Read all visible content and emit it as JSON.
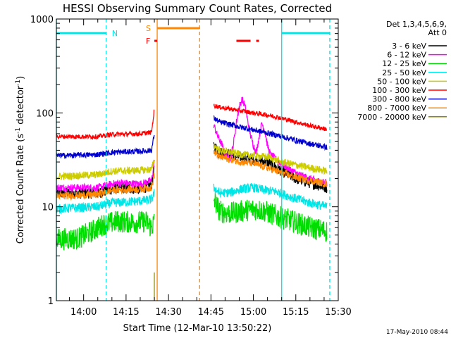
{
  "chart_data": {
    "type": "line",
    "title": "HESSI Observing Summary Count Rates, Corrected",
    "xlabel": "Start Time (12-Mar-10 13:50:22)",
    "ylabel_main": "Corrected Count Rate (s",
    "ylabel_sup1": "-1",
    "ylabel_mid": " detector",
    "ylabel_sup2": "-1",
    "ylabel_end": ")",
    "yscale": "log",
    "ylim": [
      1,
      1000
    ],
    "xlim": [
      "13:50:22",
      "15:30"
    ],
    "x_ticks": [
      "14:00",
      "14:15",
      "14:30",
      "14:45",
      "15:00",
      "15:15",
      "15:30"
    ],
    "y_ticks": [
      "1",
      "10",
      "100",
      "1000"
    ],
    "footer": "17-May-2010 08:44",
    "legend": {
      "header1": "Det 1,3,4,5,6,9,",
      "header2": "Att 0",
      "placement": "right",
      "entries": [
        {
          "label": "3 - 6 keV",
          "color": "#000000"
        },
        {
          "label": "6 - 12 keV",
          "color": "#ff00ff"
        },
        {
          "label": "12 - 25 keV",
          "color": "#00dd00"
        },
        {
          "label": "25 - 50 keV",
          "color": "#00e5e5"
        },
        {
          "label": "50 - 100 keV",
          "color": "#cccc00"
        },
        {
          "label": "100 - 300 keV",
          "color": "#ff0000"
        },
        {
          "label": "300 - 800 keV",
          "color": "#0000cc"
        },
        {
          "label": "800 - 7000 keV",
          "color": "#ff8800"
        },
        {
          "label": "7000 - 20000 keV",
          "color": "#888800"
        }
      ]
    },
    "flags": [
      {
        "label": "N",
        "color": "#00e5e5"
      },
      {
        "label": "S",
        "color": "#ff8800"
      },
      {
        "label": "F",
        "color": "#ff0000"
      }
    ],
    "series": [
      {
        "name": "3 - 6 keV",
        "color": "#000000",
        "noise": 0.06,
        "segments": [
          [
            [
              "13:50:22",
              14
            ],
            [
              "14:05",
              14
            ],
            [
              "14:12",
              16
            ],
            [
              "14:20",
              15.5
            ],
            [
              "14:24",
              17
            ],
            [
              "14:25",
              25
            ]
          ],
          [
            [
              "14:46",
              45
            ],
            [
              "14:48",
              38
            ],
            [
              "14:52",
              36
            ],
            [
              "14:55",
              34
            ],
            [
              "15:00",
              32
            ],
            [
              "15:05",
              30
            ],
            [
              "15:10",
              24
            ],
            [
              "15:15",
              20
            ],
            [
              "15:20",
              18
            ],
            [
              "15:26",
              16
            ]
          ]
        ]
      },
      {
        "name": "6 - 12 keV",
        "color": "#ff00ff",
        "noise": 0.04,
        "segments": [
          [
            [
              "13:50:22",
              16
            ],
            [
              "14:05",
              16
            ],
            [
              "14:12",
              18
            ],
            [
              "14:20",
              17.5
            ],
            [
              "14:24",
              19
            ],
            [
              "14:25",
              30
            ]
          ],
          [
            [
              "14:46",
              75
            ],
            [
              "14:47",
              60
            ],
            [
              "14:49",
              45
            ],
            [
              "14:50",
              36
            ],
            [
              "14:52",
              33
            ],
            [
              "14:53",
              48
            ],
            [
              "14:54",
              80
            ],
            [
              "14:55",
              115
            ],
            [
              "14:56",
              140
            ],
            [
              "14:57",
              120
            ],
            [
              "14:58",
              82
            ],
            [
              "14:59",
              58
            ],
            [
              "15:00",
              45
            ],
            [
              "15:01",
              38
            ],
            [
              "15:02",
              55
            ],
            [
              "15:03",
              78
            ],
            [
              "15:04",
              65
            ],
            [
              "15:05",
              45
            ],
            [
              "15:06",
              36
            ],
            [
              "15:08",
              32
            ],
            [
              "15:12",
              26
            ],
            [
              "15:16",
              22
            ],
            [
              "15:22",
              19
            ],
            [
              "15:26",
              18
            ]
          ]
        ]
      },
      {
        "name": "12 - 25 keV",
        "color": "#00dd00",
        "noise": 0.12,
        "segments": [
          [
            [
              "13:50:22",
              4.5
            ],
            [
              "13:58",
              4.6
            ],
            [
              "14:03",
              5.5
            ],
            [
              "14:07",
              6.5
            ],
            [
              "14:12",
              7
            ],
            [
              "14:18",
              6.8
            ],
            [
              "14:22",
              7
            ],
            [
              "14:24",
              6
            ],
            [
              "14:25",
              7
            ]
          ],
          [
            [
              "14:46",
              12
            ],
            [
              "14:48",
              9
            ],
            [
              "14:52",
              8.5
            ],
            [
              "14:56",
              9
            ],
            [
              "15:00",
              9.5
            ],
            [
              "15:04",
              9
            ],
            [
              "15:08",
              8
            ],
            [
              "15:14",
              7
            ],
            [
              "15:20",
              6
            ],
            [
              "15:26",
              5.5
            ]
          ]
        ]
      },
      {
        "name": "25 - 50 keV",
        "color": "#00e5e5",
        "noise": 0.05,
        "segments": [
          [
            [
              "13:50:22",
              9.5
            ],
            [
              "14:05",
              10
            ],
            [
              "14:10",
              11
            ],
            [
              "14:20",
              11.5
            ],
            [
              "14:24",
              12
            ],
            [
              "14:25",
              14
            ]
          ],
          [
            [
              "14:46",
              16
            ],
            [
              "14:48",
              14
            ],
            [
              "14:52",
              14.2
            ],
            [
              "14:56",
              15.5
            ],
            [
              "15:00",
              16
            ],
            [
              "15:04",
              15
            ],
            [
              "15:08",
              14.5
            ],
            [
              "15:14",
              12.5
            ],
            [
              "15:20",
              11
            ],
            [
              "15:26",
              10
            ]
          ]
        ]
      },
      {
        "name": "50 - 100 keV",
        "color": "#cccc00",
        "noise": 0.04,
        "segments": [
          [
            [
              "13:50:22",
              21
            ],
            [
              "14:05",
              22
            ],
            [
              "14:10",
              24
            ],
            [
              "14:20",
              24.5
            ],
            [
              "14:24",
              25
            ],
            [
              "14:25",
              32
            ]
          ],
          [
            [
              "14:46",
              45
            ],
            [
              "14:48",
              40
            ],
            [
              "14:52",
              38
            ],
            [
              "14:56",
              36
            ],
            [
              "15:00",
              35
            ],
            [
              "15:05",
              34
            ],
            [
              "15:10",
              30
            ],
            [
              "15:15",
              28
            ],
            [
              "15:20",
              26
            ],
            [
              "15:26",
              24
            ]
          ]
        ]
      },
      {
        "name": "100 - 300 keV",
        "color": "#ff0000",
        "noise": 0.025,
        "segments": [
          [
            [
              "13:50:22",
              56
            ],
            [
              "14:05",
              56
            ],
            [
              "14:10",
              59
            ],
            [
              "14:20",
              60
            ],
            [
              "14:24",
              62
            ],
            [
              "14:25",
              110
            ]
          ],
          [
            [
              "14:46",
              120
            ],
            [
              "14:48",
              115
            ],
            [
              "14:52",
              110
            ],
            [
              "14:56",
              105
            ],
            [
              "15:00",
              100
            ],
            [
              "15:05",
              95
            ],
            [
              "15:10",
              88
            ],
            [
              "15:15",
              80
            ],
            [
              "15:20",
              73
            ],
            [
              "15:26",
              67
            ]
          ]
        ]
      },
      {
        "name": "300 - 800 keV",
        "color": "#0000cc",
        "noise": 0.03,
        "segments": [
          [
            [
              "13:50:22",
              35
            ],
            [
              "14:05",
              36
            ],
            [
              "14:10",
              38
            ],
            [
              "14:20",
              39
            ],
            [
              "14:24",
              40
            ],
            [
              "14:25",
              60
            ]
          ],
          [
            [
              "14:46",
              88
            ],
            [
              "14:48",
              80
            ],
            [
              "14:52",
              75
            ],
            [
              "14:56",
              70
            ],
            [
              "15:00",
              66
            ],
            [
              "15:05",
              61
            ],
            [
              "15:10",
              56
            ],
            [
              "15:15",
              51
            ],
            [
              "15:20",
              47
            ],
            [
              "15:26",
              43
            ]
          ]
        ]
      },
      {
        "name": "800 - 7000 keV",
        "color": "#ff8800",
        "noise": 0.04,
        "segments": [
          [
            [
              "13:50:22",
              13
            ],
            [
              "14:05",
              13.5
            ],
            [
              "14:10",
              15
            ],
            [
              "14:20",
              15.5
            ],
            [
              "14:24",
              16
            ],
            [
              "14:25",
              22
            ]
          ],
          [
            [
              "14:46",
              38
            ],
            [
              "14:48",
              34
            ],
            [
              "14:52",
              32
            ],
            [
              "14:56",
              30
            ],
            [
              "15:00",
              29
            ],
            [
              "15:05",
              26
            ],
            [
              "15:10",
              23
            ],
            [
              "15:15",
              20.5
            ],
            [
              "15:20",
              19
            ],
            [
              "15:26",
              17.5
            ]
          ]
        ]
      },
      {
        "name": "7000 - 20000 keV",
        "color": "#888800",
        "noise": 0.0,
        "segments": [
          [
            [
              "14:25",
              2
            ],
            [
              "14:25",
              1
            ]
          ]
        ]
      }
    ],
    "flag_segments": {
      "N": [
        [
          "13:50:22",
          "14:08"
        ],
        [
          "15:10",
          "15:27"
        ]
      ],
      "S": [
        [
          "14:26",
          "14:41"
        ]
      ],
      "F": [
        [
          "14:25",
          "14:26"
        ],
        [
          "14:54",
          "14:59"
        ],
        [
          "15:01",
          "15:02"
        ]
      ]
    },
    "vertical_lines": [
      {
        "color": "#00e5e5",
        "style": "solid",
        "at": "13:50:22"
      },
      {
        "color": "#00e5e5",
        "style": "dashed",
        "at": "14:08"
      },
      {
        "color": "#ff8800",
        "style": "solid",
        "at": "14:26"
      },
      {
        "color": "#ff8800",
        "style": "dashed",
        "at": "14:41"
      },
      {
        "color": "#00e5e5",
        "style": "solid",
        "at": "15:10"
      },
      {
        "color": "#00e5e5",
        "style": "dashed",
        "at": "15:27"
      }
    ]
  }
}
